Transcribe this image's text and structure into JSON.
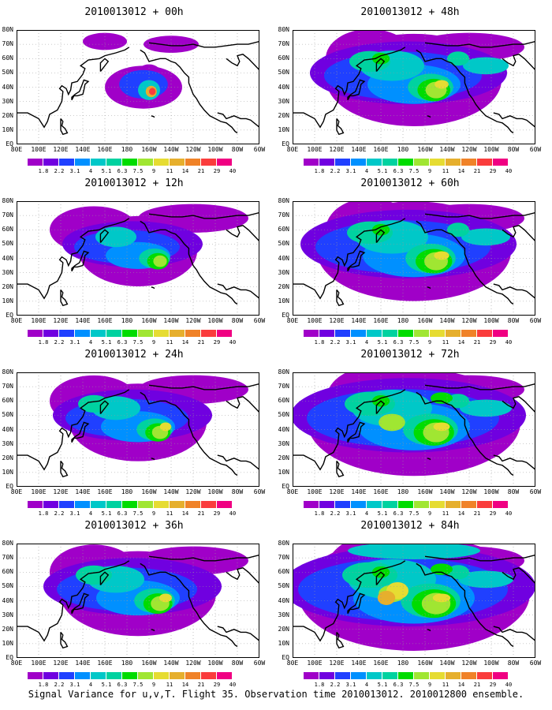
{
  "footer": "Signal Variance for u,v,T. Flight 35. Observation time 2010013012. 2010012800 ensemble.",
  "y_axis_labels": [
    "80N",
    "70N",
    "60N",
    "50N",
    "40N",
    "30N",
    "20N",
    "10N",
    "EQ"
  ],
  "x_axis_labels": [
    "80E",
    "100E",
    "120E",
    "140E",
    "160E",
    "180",
    "160W",
    "140W",
    "120W",
    "100W",
    "80W",
    "60W"
  ],
  "colorbar": {
    "labels": [
      "1.8",
      "2.2",
      "3.1",
      "4",
      "5.1",
      "6.3",
      "7.5",
      "9",
      "11",
      "14",
      "21",
      "29",
      "40"
    ],
    "colors": [
      "#a000c8",
      "#7000e0",
      "#2040ff",
      "#0090ff",
      "#00c8c8",
      "#00d2a0",
      "#00dc00",
      "#a0e632",
      "#e6dc32",
      "#e6af2d",
      "#f08228",
      "#fa3c3c",
      "#f00082"
    ]
  },
  "panels": [
    {
      "title": "2010013012 + 00h",
      "lead_h": 0
    },
    {
      "title": "2010013012 + 48h",
      "lead_h": 48
    },
    {
      "title": "2010013012 + 12h",
      "lead_h": 12
    },
    {
      "title": "2010013012 + 60h",
      "lead_h": 60
    },
    {
      "title": "2010013012 + 24h",
      "lead_h": 24
    },
    {
      "title": "2010013012 + 72h",
      "lead_h": 72
    },
    {
      "title": "2010013012 + 36h",
      "lead_h": 36
    },
    {
      "title": "2010013012 + 84h",
      "lead_h": 84
    }
  ]
}
